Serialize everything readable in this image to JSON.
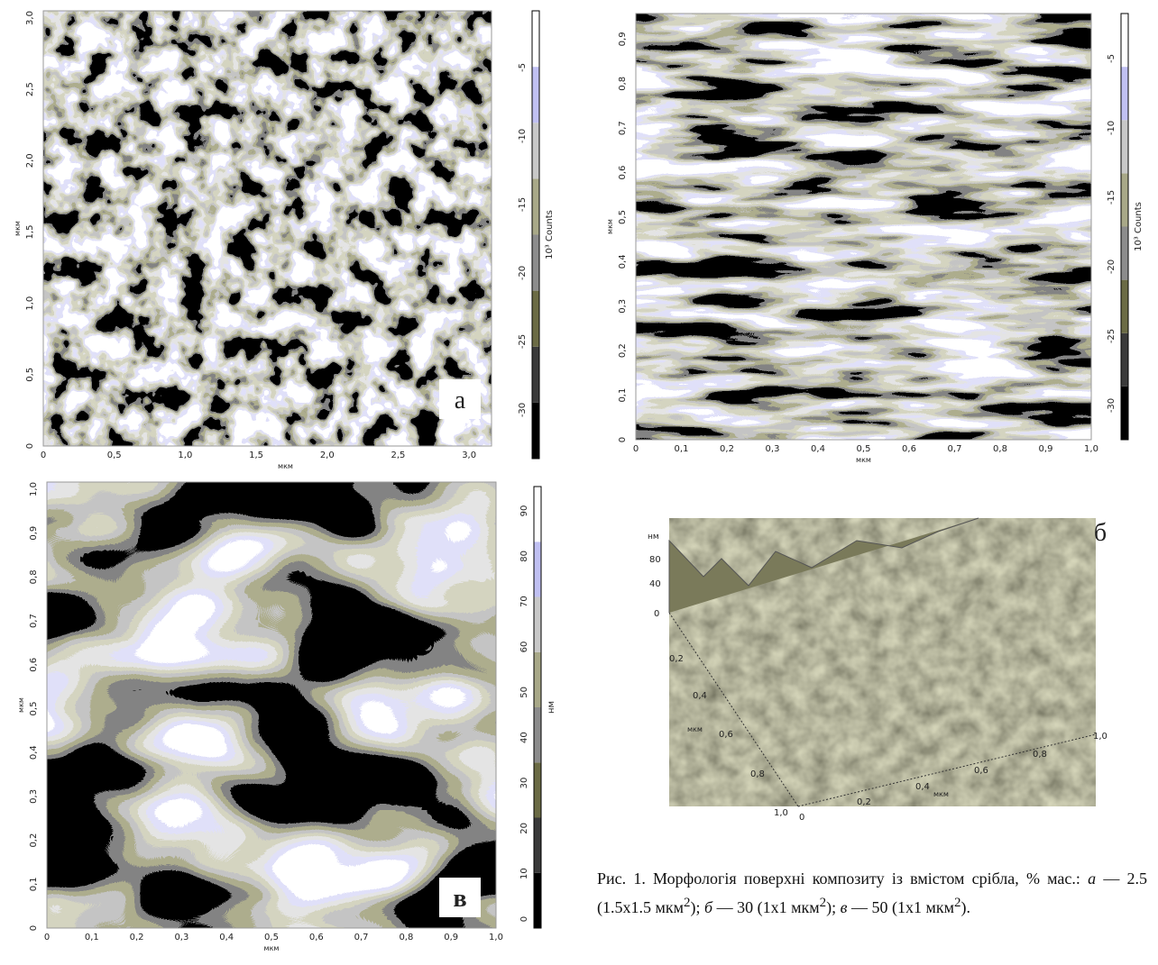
{
  "panels": [
    {
      "letter": "а",
      "x_label": "мкм",
      "y_label": "мкм",
      "x_ticks": [
        "0",
        "0,5",
        "1,0",
        "1,5",
        "2,0",
        "2,5",
        "3,0"
      ],
      "y_ticks": [
        "0",
        "0,5",
        "1,0",
        "1,5",
        "2,0",
        "2,5",
        "3,0"
      ],
      "colorbar": {
        "ticks": [
          "-5",
          "-10",
          "-15",
          "-20",
          "-25",
          "-30"
        ],
        "label": "10³ Counts"
      }
    },
    {
      "letter": "б",
      "x_label": "мкм",
      "y_label": "мкм",
      "x_ticks": [
        "0",
        "0,1",
        "0,2",
        "0,3",
        "0,4",
        "0,5",
        "0,6",
        "0,7",
        "0,8",
        "0,9",
        "1,0"
      ],
      "y_ticks": [
        "0",
        "0,1",
        "0,2",
        "0,3",
        "0,4",
        "0,5",
        "0,6",
        "0,7",
        "0,8",
        "0,9"
      ],
      "colorbar": {
        "ticks": [
          "-5",
          "-10",
          "-15",
          "-20",
          "-25",
          "-30"
        ],
        "label": "10³ Counts"
      }
    },
    {
      "letter": "в",
      "x_label": "мкм",
      "y_label": "мкм",
      "x_ticks": [
        "0",
        "0,1",
        "0,2",
        "0,3",
        "0,4",
        "0,5",
        "0,6",
        "0,7",
        "0,8",
        "0,9",
        "1,0"
      ],
      "y_ticks": [
        "0",
        "0,1",
        "0,2",
        "0,3",
        "0,4",
        "0,5",
        "0,6",
        "0,7",
        "0,8",
        "0,9",
        "1,0"
      ],
      "colorbar": {
        "ticks": [
          "0",
          "10",
          "20",
          "30",
          "40",
          "50",
          "60",
          "70",
          "80",
          "90"
        ],
        "label": "нм"
      }
    }
  ],
  "surface_3d": {
    "z_label": "нм",
    "z_ticks": [
      "80",
      "40",
      "0"
    ],
    "y_ticks": [
      "0,2",
      "0,4",
      "0,6",
      "0,8",
      "1,0"
    ],
    "y_label": "мкм",
    "x_ticks": [
      "0",
      "0,2",
      "0,4",
      "0,6",
      "0,8",
      "1,0"
    ],
    "x_label": "мкм"
  },
  "caption": {
    "prefix": "Рис. 1.",
    "text": "Морфологія поверхні композиту із вмістом срібла, % мас.:",
    "items": [
      {
        "letter": "а",
        "text": "— 2.5 (1.5x1.5 мкм",
        "sup": "2",
        "end": ");"
      },
      {
        "letter": "б",
        "text": "— 30 (1x1 мкм",
        "sup": "2",
        "end": ");"
      },
      {
        "letter": "в",
        "text": "— 50 (1x1 мкм",
        "sup": "2",
        "end": ")."
      }
    ]
  }
}
